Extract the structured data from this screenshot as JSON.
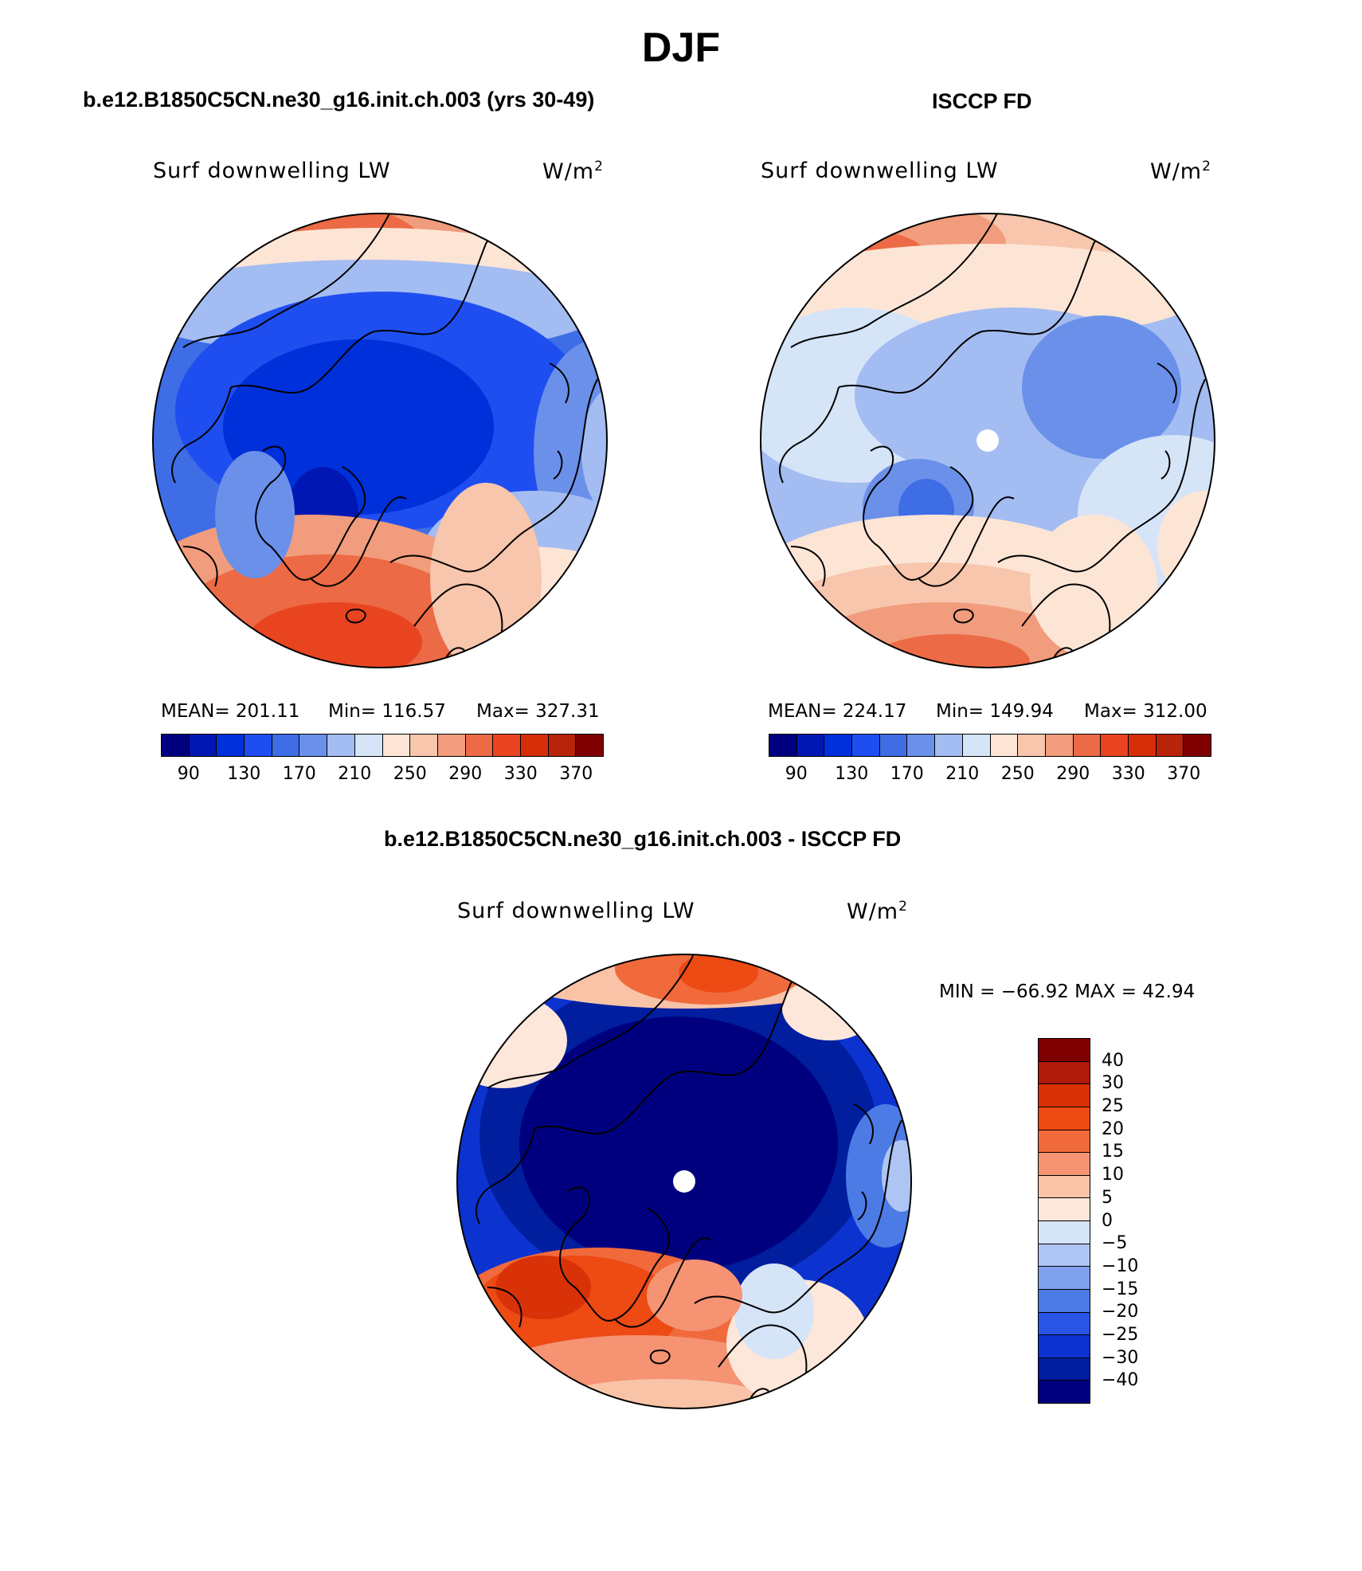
{
  "title": "DJF",
  "panels": [
    {
      "title": "b.e12.B1850C5CN.ne30_g16.init.ch.003 (yrs 30-49)",
      "left_label": "Surf downwelling LW",
      "units_base": "W/m",
      "units_exp": "2",
      "stats": {
        "mean_label": "MEAN= 201.11",
        "min_label": "Min= 116.57",
        "max_label": "Max= 327.31"
      },
      "colorbar_ticks": [
        "90",
        "130",
        "170",
        "210",
        "250",
        "290",
        "330",
        "370"
      ]
    },
    {
      "title": "ISCCP FD",
      "left_label": "Surf downwelling LW",
      "units_base": "W/m",
      "units_exp": "2",
      "stats": {
        "mean_label": "MEAN= 224.17",
        "min_label": "Min= 149.94",
        "max_label": "Max= 312.00"
      },
      "colorbar_ticks": [
        "90",
        "130",
        "170",
        "210",
        "250",
        "290",
        "330",
        "370"
      ]
    },
    {
      "title": "b.e12.B1850C5CN.ne30_g16.init.ch.003 - ISCCP FD",
      "left_label": "Surf downwelling LW",
      "units_base": "W/m",
      "units_exp": "2",
      "minmax": "MIN = −66.92 MAX =  42.94",
      "colorbar_ticks": [
        "40",
        "30",
        "25",
        "20",
        "15",
        "10",
        "5",
        "0",
        "−5",
        "−10",
        "−15",
        "−20",
        "−25",
        "−30",
        "−40"
      ]
    }
  ],
  "colors": {
    "abs_scale": [
      "#00007f",
      "#0017b3",
      "#0030d9",
      "#1f4ef0",
      "#3e6de6",
      "#6a90ea",
      "#a3bcf2",
      "#d6e4f8",
      "#fde5d5",
      "#f7c6ac",
      "#f19c7c",
      "#ec6a45",
      "#e94420",
      "#d72e0a",
      "#b8230a",
      "#7f0000"
    ],
    "diff_scale": [
      "#7f0000",
      "#b01a0a",
      "#d93208",
      "#ed4a14",
      "#f06a3c",
      "#f59373",
      "#f9c3a8",
      "#fde7da",
      "#d6e4f8",
      "#aec5f3",
      "#7fa0ec",
      "#4d7be6",
      "#2855e4",
      "#0c33d0",
      "#001e9e",
      "#00007f"
    ],
    "coastline": "#000000"
  }
}
